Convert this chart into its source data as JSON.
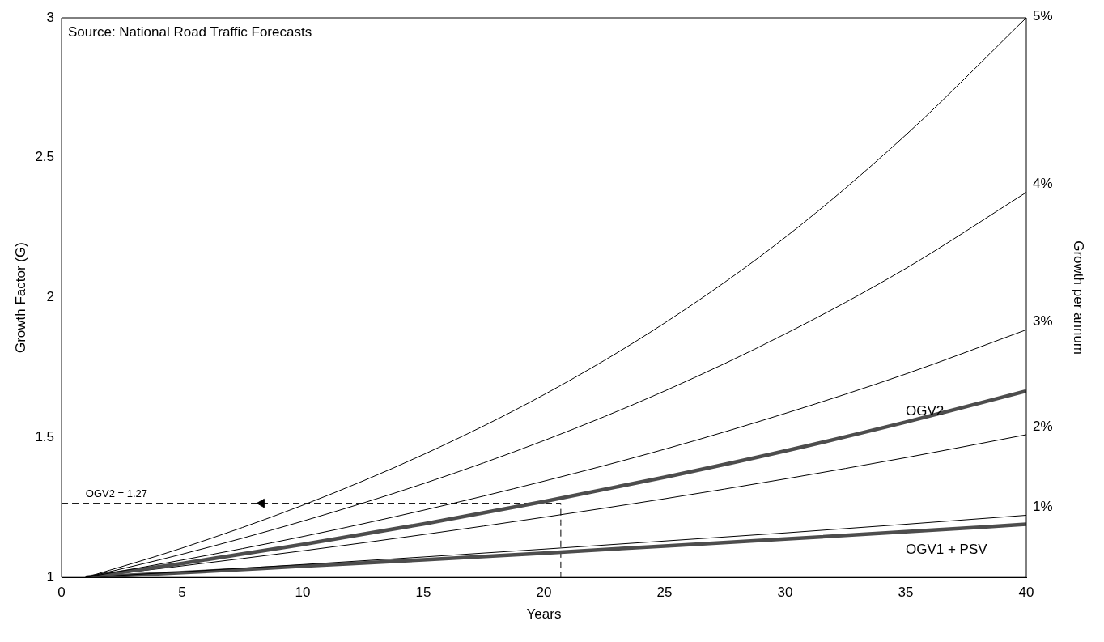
{
  "chart_data": {
    "type": "line",
    "xlabel": "Years",
    "ylabel": "Growth Factor (G)",
    "y2label": "Growth per annum",
    "xlim": [
      0,
      40
    ],
    "xticks": [
      0,
      5,
      10,
      15,
      20,
      25,
      30,
      35,
      40
    ],
    "ylim": [
      1,
      3
    ],
    "yticks": [
      1,
      1.5,
      2,
      2.5,
      3
    ],
    "grid": false,
    "legend": false,
    "marker": "none",
    "x": [
      1,
      5,
      10,
      15,
      20,
      25,
      30,
      35,
      40
    ],
    "series": [
      {
        "name": "5%",
        "color": "#000000",
        "values": [
          1,
          1.105,
          1.258,
          1.439,
          1.653,
          1.909,
          2.215,
          2.581,
          3.0
        ]
      },
      {
        "name": "4%",
        "color": "#000000",
        "values": [
          1,
          1.083,
          1.201,
          1.335,
          1.489,
          1.666,
          1.87,
          2.104,
          2.376
        ]
      },
      {
        "name": "3%",
        "color": "#000000",
        "values": [
          1,
          1.062,
          1.146,
          1.24,
          1.344,
          1.458,
          1.586,
          1.727,
          1.885
        ]
      },
      {
        "name": "OGV2",
        "color": "#4d4d4d",
        "values": [
          1,
          1.05,
          1.118,
          1.191,
          1.271,
          1.358,
          1.452,
          1.555,
          1.666
        ]
      },
      {
        "name": "2%",
        "color": "#000000",
        "values": [
          1,
          1.041,
          1.095,
          1.153,
          1.215,
          1.281,
          1.352,
          1.428,
          1.51
        ]
      },
      {
        "name": "1%",
        "color": "#000000",
        "values": [
          1,
          1.02,
          1.046,
          1.073,
          1.101,
          1.13,
          1.159,
          1.19,
          1.222
        ]
      },
      {
        "name": "OGV1 + PSV",
        "color": "#4d4d4d",
        "values": [
          1,
          1.017,
          1.04,
          1.063,
          1.087,
          1.112,
          1.137,
          1.163,
          1.19
        ]
      },
      {
        "color": "#000000",
        "line_style": "dashed",
        "x": [
          0,
          8.3,
          20.7,
          20.7
        ],
        "values": [
          1.265,
          1.265,
          1.265,
          1
        ]
      }
    ],
    "annotations": [
      "Source: National Road Traffic Forecasts",
      {
        "text": "OGV2 = 1.27",
        "x": 1,
        "y": 1.28
      }
    ]
  }
}
